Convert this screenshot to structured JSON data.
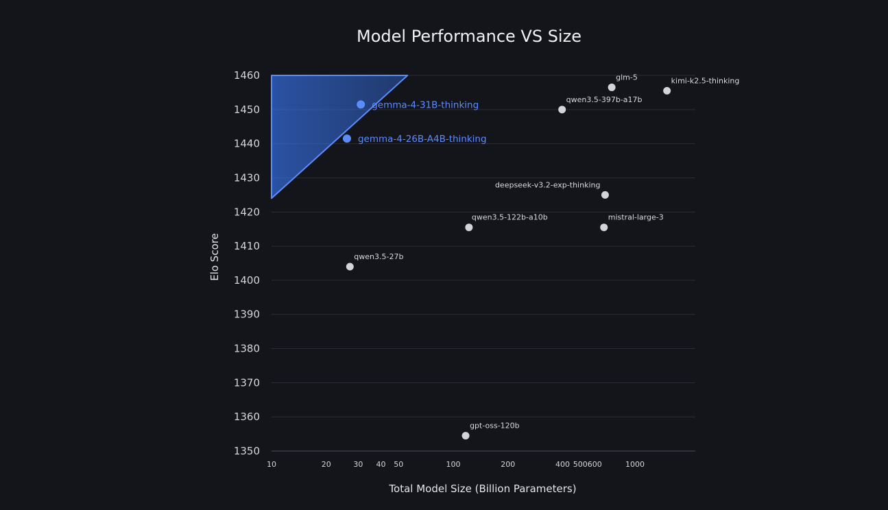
{
  "chart_data": {
    "type": "scatter",
    "title": "Model Performance VS Size",
    "xlabel": "Total Model Size (Billion Parameters)",
    "ylabel": "Elo Score",
    "x_scale": "log",
    "xlim": [
      10,
      2000
    ],
    "ylim": [
      1350,
      1460
    ],
    "x_ticks": [
      10,
      20,
      30,
      40,
      50,
      100,
      200,
      400,
      500,
      600,
      1000
    ],
    "y_ticks": [
      1350,
      1360,
      1370,
      1380,
      1390,
      1400,
      1410,
      1420,
      1430,
      1440,
      1450,
      1460
    ],
    "grid": "horizontal",
    "colors": {
      "background": "#14151a",
      "point": "#d4d4d8",
      "highlight": "#5b8cff",
      "region": "#2f6fdc"
    },
    "highlight_region": {
      "x": [
        10,
        56,
        10
      ],
      "y": [
        1460,
        1460,
        1424
      ]
    },
    "points": [
      {
        "label": "gemma-4-31B-thinking",
        "x": 31,
        "y": 1451.5,
        "highlight": true
      },
      {
        "label": "gemma-4-26B-A4B-thinking",
        "x": 26,
        "y": 1441.5,
        "highlight": true
      },
      {
        "label": "glm-5",
        "x": 745,
        "y": 1456.5,
        "highlight": false
      },
      {
        "label": "kimi-k2.5-thinking",
        "x": 1500,
        "y": 1455.5,
        "highlight": false
      },
      {
        "label": "qwen3.5-397b-a17b",
        "x": 397,
        "y": 1450,
        "highlight": false
      },
      {
        "label": "deepseek-v3.2-exp-thinking",
        "x": 685,
        "y": 1425,
        "highlight": false
      },
      {
        "label": "qwen3.5-122b-a10b",
        "x": 122,
        "y": 1415.5,
        "highlight": false
      },
      {
        "label": "mistral-large-3",
        "x": 675,
        "y": 1415.5,
        "highlight": false
      },
      {
        "label": "qwen3.5-27b",
        "x": 27,
        "y": 1404,
        "highlight": false
      },
      {
        "label": "gpt-oss-120b",
        "x": 117,
        "y": 1354.5,
        "highlight": false
      }
    ]
  }
}
